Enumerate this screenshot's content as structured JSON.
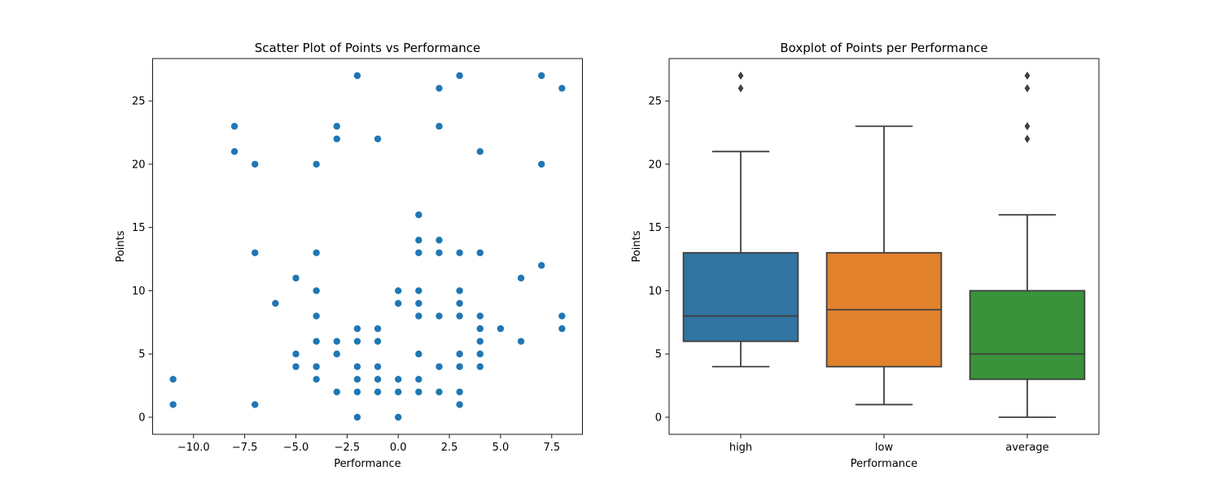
{
  "chart_data": [
    {
      "type": "scatter",
      "title": "Scatter Plot of Points vs Performance",
      "xlabel": "Performance",
      "ylabel": "Points",
      "xlim": [
        -12.0,
        9.0
      ],
      "ylim": [
        -1.35,
        28.35
      ],
      "xticks": [
        -10.0,
        -7.5,
        -5.0,
        -2.5,
        0.0,
        2.5,
        5.0,
        7.5
      ],
      "xtick_labels": [
        "−10.0",
        "−7.5",
        "−5.0",
        "−2.5",
        "0.0",
        "2.5",
        "5.0",
        "7.5"
      ],
      "yticks": [
        0,
        5,
        10,
        15,
        20,
        25
      ],
      "ytick_labels": [
        "0",
        "5",
        "10",
        "15",
        "20",
        "25"
      ],
      "grid": false,
      "color": "#1f77b4",
      "points": [
        [
          -11,
          3
        ],
        [
          -11,
          1
        ],
        [
          -8,
          23
        ],
        [
          -8,
          21
        ],
        [
          -7,
          20
        ],
        [
          -7,
          13
        ],
        [
          -7,
          1
        ],
        [
          -6,
          9
        ],
        [
          -5,
          11
        ],
        [
          -5,
          5
        ],
        [
          -5,
          4
        ],
        [
          -4,
          20
        ],
        [
          -4,
          13
        ],
        [
          -4,
          10
        ],
        [
          -4,
          8
        ],
        [
          -4,
          6
        ],
        [
          -4,
          4
        ],
        [
          -4,
          3
        ],
        [
          -3,
          23
        ],
        [
          -3,
          22
        ],
        [
          -3,
          6
        ],
        [
          -3,
          5
        ],
        [
          -3,
          2
        ],
        [
          -2,
          27
        ],
        [
          -2,
          7
        ],
        [
          -2,
          6
        ],
        [
          -2,
          4
        ],
        [
          -2,
          3
        ],
        [
          -2,
          2
        ],
        [
          -2,
          0
        ],
        [
          -1,
          22
        ],
        [
          -1,
          7
        ],
        [
          -1,
          6
        ],
        [
          -1,
          4
        ],
        [
          -1,
          3
        ],
        [
          -1,
          2
        ],
        [
          0,
          10
        ],
        [
          0,
          9
        ],
        [
          0,
          3
        ],
        [
          0,
          2
        ],
        [
          0,
          0
        ],
        [
          1,
          16
        ],
        [
          1,
          14
        ],
        [
          1,
          13
        ],
        [
          1,
          10
        ],
        [
          1,
          9
        ],
        [
          1,
          8
        ],
        [
          1,
          5
        ],
        [
          1,
          3
        ],
        [
          1,
          2
        ],
        [
          2,
          26
        ],
        [
          2,
          23
        ],
        [
          2,
          14
        ],
        [
          2,
          13
        ],
        [
          2,
          8
        ],
        [
          2,
          4
        ],
        [
          2,
          2
        ],
        [
          3,
          27
        ],
        [
          3,
          13
        ],
        [
          3,
          10
        ],
        [
          3,
          9
        ],
        [
          3,
          8
        ],
        [
          3,
          5
        ],
        [
          3,
          4
        ],
        [
          3,
          2
        ],
        [
          3,
          1
        ],
        [
          4,
          21
        ],
        [
          4,
          13
        ],
        [
          4,
          8
        ],
        [
          4,
          7
        ],
        [
          4,
          6
        ],
        [
          4,
          5
        ],
        [
          4,
          4
        ],
        [
          5,
          7
        ],
        [
          6,
          11
        ],
        [
          6,
          6
        ],
        [
          7,
          27
        ],
        [
          7,
          20
        ],
        [
          7,
          12
        ],
        [
          8,
          26
        ],
        [
          8,
          8
        ],
        [
          8,
          7
        ]
      ]
    },
    {
      "type": "box",
      "title": "Boxplot of Points per Performance",
      "xlabel": "Performance",
      "ylabel": "Points",
      "ylim": [
        -1.35,
        28.35
      ],
      "yticks": [
        0,
        5,
        10,
        15,
        20,
        25
      ],
      "ytick_labels": [
        "0",
        "5",
        "10",
        "15",
        "20",
        "25"
      ],
      "grid": false,
      "categories": [
        "high",
        "low",
        "average"
      ],
      "boxes": [
        {
          "category": "high",
          "color": "#3274a1",
          "whisker_low": 4,
          "q1": 6,
          "median": 8,
          "q3": 13,
          "whisker_high": 21,
          "outliers": [
            26,
            27
          ]
        },
        {
          "category": "low",
          "color": "#e1812c",
          "whisker_low": 1,
          "q1": 4,
          "median": 8.5,
          "q3": 13,
          "whisker_high": 23,
          "outliers": []
        },
        {
          "category": "average",
          "color": "#3a923a",
          "whisker_low": 0,
          "q1": 3,
          "median": 5,
          "q3": 10,
          "whisker_high": 16,
          "outliers": [
            22,
            23,
            26,
            27
          ]
        }
      ]
    }
  ]
}
